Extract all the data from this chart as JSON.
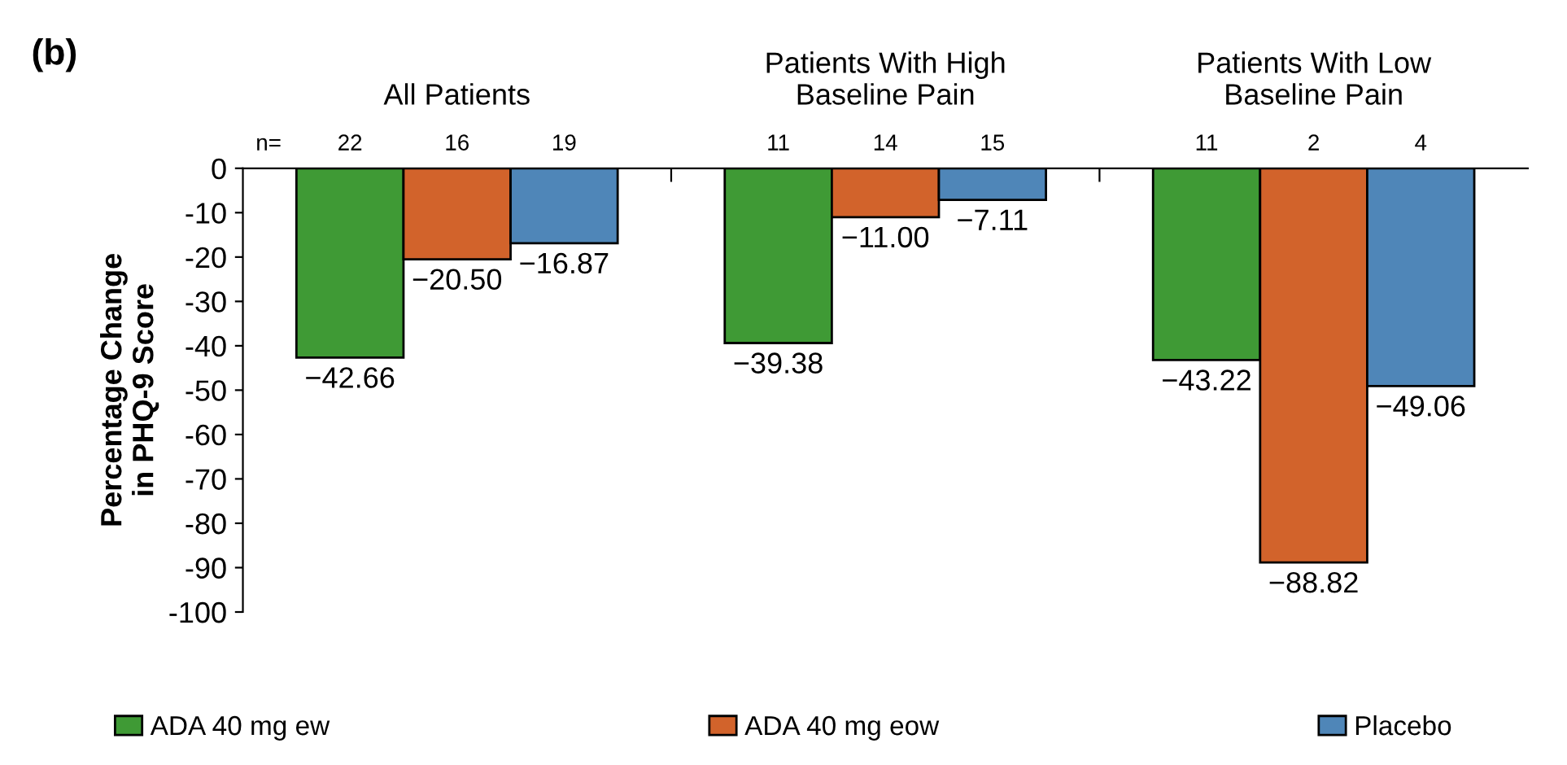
{
  "chart_data": {
    "type": "bar",
    "title": "(b)",
    "ylabel": "Percentage Change\nin PHQ-9 Score",
    "categories": [
      "All Patients",
      "Patients With High\nBaseline Pain",
      "Patients With Low\nBaseline Pain"
    ],
    "series": [
      {
        "name": "ADA 40 mg ew",
        "color": "#3f9a35",
        "values": [
          -42.66,
          -39.38,
          -43.22
        ],
        "value_labels": [
          "−42.66",
          "−39.38",
          "−43.22"
        ]
      },
      {
        "name": "ADA 40 mg eow",
        "color": "#d2632b",
        "values": [
          -20.5,
          -11.0,
          -88.82
        ],
        "value_labels": [
          "−20.50",
          "−11.00",
          "−88.82"
        ]
      },
      {
        "name": "Placebo",
        "color": "#4f86b8",
        "values": [
          -16.87,
          -7.11,
          -49.06
        ],
        "value_labels": [
          "−16.87",
          "−7.11",
          "−49.06"
        ]
      }
    ],
    "annotations": [
      "n=",
      "22",
      "16",
      "19",
      "11",
      "14",
      "15",
      "11",
      "2",
      "4"
    ],
    "ylim": [
      -100,
      0
    ],
    "yticks": [
      0,
      -10,
      -20,
      -30,
      -40,
      -50,
      -60,
      -70,
      -80,
      -90,
      -100
    ],
    "grid": false,
    "legend": "bottom"
  }
}
